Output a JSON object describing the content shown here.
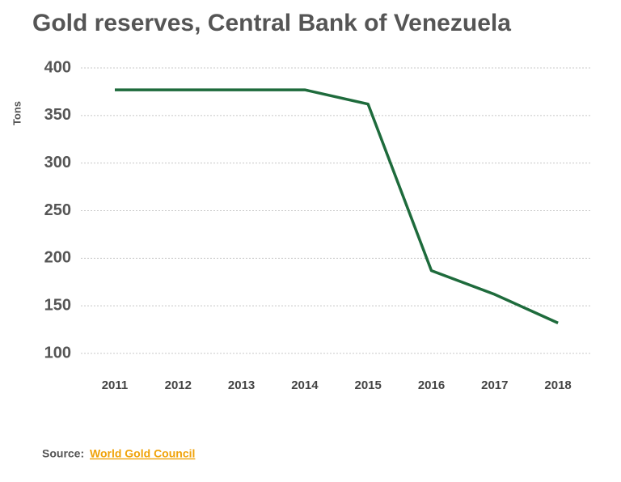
{
  "chart_data": {
    "type": "line",
    "title": "Gold reserves, Central Bank of Venezuela",
    "y_label": "Tons",
    "categories": [
      "2011",
      "2012",
      "2013",
      "2014",
      "2015",
      "2016",
      "2017",
      "2018"
    ],
    "series": [
      {
        "name": "Gold reserves",
        "color": "#1e6b3c",
        "values": [
          377,
          377,
          377,
          377,
          362,
          187,
          162,
          132
        ]
      }
    ],
    "ylim": [
      100,
      400
    ],
    "yticks": [
      100,
      150,
      200,
      250,
      300,
      350,
      400
    ],
    "grid": true,
    "source_label": "Source:",
    "source_link": "World Gold Council"
  }
}
